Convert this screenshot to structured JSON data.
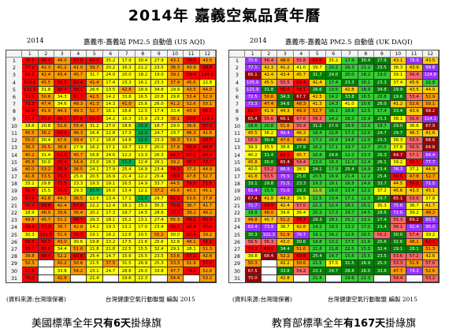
{
  "title": "2014年 嘉義空氣品質年曆",
  "chart_data": [
    {
      "type": "heatmap",
      "year": "2014",
      "title": "嘉義市-嘉義站 PM2.5 自動值 (US AQI)",
      "row_axis": "日",
      "col_axis": "月",
      "columns": [
        "1",
        "2",
        "3",
        "4",
        "5",
        "6",
        "7",
        "8",
        "9",
        "10",
        "11",
        "12"
      ],
      "rows": [
        "1",
        "2",
        "3",
        "4",
        "5",
        "6",
        "7",
        "8",
        "9",
        "10",
        "11",
        "12",
        "13",
        "14",
        "15",
        "16",
        "17",
        "18",
        "19",
        "20",
        "21",
        "22",
        "23",
        "24",
        "25",
        "26",
        "27",
        "28",
        "29",
        "30",
        "31"
      ],
      "values": [
        [
          "70.6",
          "56.4",
          "48.0",
          "55.8",
          "64.0",
          "35.2",
          "17.9",
          "30.4",
          "27.9",
          "43.1",
          "78.9",
          "43.5"
        ],
        [
          "77.1",
          "42.3",
          "41.2",
          "41.0",
          "39.7",
          "20.2",
          "16.3",
          "21.2",
          "23.5",
          "36.3",
          "43.9",
          "99.8"
        ],
        [
          "66.1",
          "42.4",
          "43.4",
          "45.7",
          "31.7",
          "24.0",
          "20.0",
          "18.2",
          "19.0",
          "39.1",
          "56.4",
          "124.8"
        ],
        [
          "105.6",
          "45.5",
          "55.5",
          "60.4",
          "41.4",
          "17.4",
          "23.3",
          "16.1",
          "23.3",
          "37.4",
          "45.6",
          "22.8"
        ],
        [
          "121.9",
          "31.8",
          "60.4",
          "58.1",
          "26.6",
          "13.5",
          "42.8",
          "18.9",
          "34.8",
          "29.9",
          "43.5",
          "44.0"
        ],
        [
          "72.5",
          "50.6",
          "34.3",
          "67.7",
          "42.5",
          "14.2",
          "33.8",
          "16.5",
          "20.8",
          "29.6",
          "53.4",
          "52.9"
        ],
        [
          "73.3",
          "47.4",
          "34.6",
          "48.3",
          "41.3",
          "14.3",
          "41.0",
          "15.6",
          "26.0",
          "41.2",
          "52.6",
          "50.1"
        ],
        [
          "62.0",
          "41.9",
          "44.3",
          "49.3",
          "52.7",
          "16.1",
          "18.8",
          "12.5",
          "17.4",
          "33.4",
          "43.9",
          "68.2"
        ],
        [
          "65.4",
          "55.6",
          "66.1",
          "57.6",
          "56.3",
          "14.2",
          "16.3",
          "15.9",
          "23.3",
          "38.1",
          "55.6",
          "114.1"
        ],
        [
          "18.6",
          "20.8",
          "51.6",
          "55.4",
          "31.2",
          "27.0",
          "18.6",
          "12.0",
          "18.7",
          "29.0",
          "36.6",
          "67.9"
        ],
        [
          "45.5",
          "36.2",
          "99.4",
          "46.3",
          "16.4",
          "22.8",
          "17.3",
          "12.0",
          "24.7",
          "29.7",
          "46.3",
          "41.6"
        ],
        [
          "55.0",
          "30.4",
          "47.6",
          "49.4",
          "17.2",
          "16.8",
          "14.8",
          "12.0",
          "23.3",
          "38.3",
          "53.5",
          "68.6"
        ],
        [
          "39.3",
          "35.5",
          "38.8",
          "27.9",
          "16.2",
          "17.1",
          "19.7",
          "12.7",
          "20.0",
          "37.8",
          "56.9",
          "64.8"
        ],
        [
          "40.2",
          "31.4",
          "61.5",
          "45.7",
          "16.8",
          "24.6",
          "12.2",
          "13.3",
          "26.3",
          "64.7",
          "57.1",
          "84.4"
        ],
        [
          "45.8",
          "30.0",
          "65.4",
          "54.4",
          "23.0",
          "16.3",
          "11.3",
          "12.4",
          "26.1",
          "39.2",
          "60.5",
          "77.7"
        ],
        [
          "40.0",
          "53.2",
          "86.9",
          "38.5",
          "24.1",
          "17.9",
          "25.4",
          "14.9",
          "23.4",
          "76.3",
          "37.2",
          "44.9"
        ],
        [
          "41.8",
          "53.5",
          "75.5",
          "25.0",
          "20.5",
          "16.9",
          "21.4",
          "12.2",
          "25.4",
          "58.6",
          "47.8",
          "52.7"
        ],
        [
          "33.1",
          "29.8",
          "71.5",
          "23.3",
          "19.3",
          "19.1",
          "16.5",
          "14.9",
          "33.7",
          "44.5",
          "59.8",
          "71.5"
        ],
        [
          "91.4",
          "15.5",
          "71.0",
          "29.3",
          "11.0",
          "16.0",
          "13.4",
          "12.1",
          "37.2",
          "45.6",
          "43.3",
          "45.1"
        ],
        [
          "67.4",
          "41.8",
          "44.3",
          "36.5",
          "12.5",
          "13.4",
          "17.1",
          "12.0",
          "29.7",
          "65.1",
          "53.6",
          "37.8"
        ],
        [
          "71.7",
          "59.8",
          "42.4",
          "57.0",
          "22.2",
          "12.4",
          "18.1",
          "15.1",
          "35.3",
          "75.6",
          "36.7",
          "41.7"
        ],
        [
          "18.9",
          "48.0",
          "39.6",
          "36.4",
          "20.2",
          "17.3",
          "19.7",
          "14.5",
          "28.6",
          "72.6",
          "39.2",
          "48.2"
        ],
        [
          "49.8",
          "45.7",
          "51.2",
          "58.7",
          "29.3",
          "18.1",
          "15.2",
          "13.1",
          "27.4",
          "55.3",
          "69.2",
          "80.9"
        ],
        [
          "83.4",
          "73.9",
          "36.7",
          "42.8",
          "14.2",
          "19.3",
          "13.2",
          "17.0",
          "23.4",
          "56.1",
          "92.4",
          "95.0"
        ],
        [
          "30.3",
          "102.3",
          "51.9",
          "70.7",
          "19.1",
          "16.2",
          "12.6",
          "20.5",
          "55.2",
          "30.0",
          "57.4",
          "39.2"
        ],
        [
          "56.5",
          "56.3",
          "43.0",
          "30.6",
          "19.8",
          "13.2",
          "17.5",
          "21.6",
          "25.6",
          "32.6",
          "48.1",
          "62.1"
        ],
        [
          "59.2",
          "60.0",
          "34.4",
          "51.6",
          "21.8",
          "21.8",
          "22.5",
          "15.5",
          "32.4",
          "29.1",
          "28.1",
          "51.3"
        ],
        [
          "39.8",
          "68.4",
          "52.2",
          "60.8",
          "25.4",
          "14.7",
          "15.6",
          "15.5",
          "23.5",
          "53.6",
          "57.2",
          "42.6"
        ],
        [
          "50.3",
          "",
          "42.2",
          "50.6",
          "21.5",
          "37.5",
          "31.5",
          "26.9",
          "25.3",
          "53.3",
          "51.9",
          "57.0"
        ],
        [
          "67.5",
          "",
          "33.8",
          "54.2",
          "23.1",
          "24.7",
          "28.8",
          "26.0",
          "33.8",
          "47.7",
          "74.2",
          "52.6"
        ],
        [
          "70.0",
          "",
          "42.8",
          "",
          "21.4",
          "",
          "19.6",
          "22.3",
          "",
          "54.4",
          "",
          "53.2"
        ]
      ]
    },
    {
      "type": "heatmap",
      "year": "2014",
      "title": "嘉義市-嘉義站 PM2.5 自動值 (UK DAQI)",
      "row_axis": "日",
      "col_axis": "月",
      "columns": [
        "1",
        "2",
        "3",
        "4",
        "5",
        "6",
        "7",
        "8",
        "9",
        "10",
        "11",
        "12"
      ],
      "rows": [
        "1",
        "2",
        "3",
        "4",
        "5",
        "6",
        "7",
        "8",
        "9",
        "10",
        "11",
        "12",
        "13",
        "14",
        "15",
        "16",
        "17",
        "18",
        "19",
        "20",
        "21",
        "22",
        "23",
        "24",
        "25",
        "26",
        "27",
        "28",
        "29",
        "30",
        "31"
      ],
      "values": [
        [
          "70.6",
          "56.4",
          "48.0",
          "55.8",
          "64.0",
          "35.2",
          "17.9",
          "30.4",
          "27.9",
          "43.1",
          "78.9",
          "43.5"
        ],
        [
          "77.1",
          "42.3",
          "41.2",
          "41.0",
          "39.7",
          "20.2",
          "16.3",
          "21.2",
          "23.5",
          "36.3",
          "43.9",
          "99.8"
        ],
        [
          "66.1",
          "42.4",
          "43.4",
          "45.7",
          "31.7",
          "24.0",
          "20.0",
          "18.2",
          "19.0",
          "39.1",
          "56.4",
          "124.8"
        ],
        [
          "105.6",
          "45.5",
          "55.5",
          "60.4",
          "41.4",
          "17.4",
          "23.3",
          "16.1",
          "23.3",
          "37.4",
          "45.6",
          "22.8"
        ],
        [
          "121.9",
          "31.8",
          "60.4",
          "58.1",
          "26.6",
          "13.5",
          "42.8",
          "18.9",
          "34.8",
          "29.9",
          "43.5",
          "44.0"
        ],
        [
          "72.5",
          "50.6",
          "34.3",
          "67.7",
          "42.5",
          "14.2",
          "33.8",
          "16.5",
          "20.8",
          "29.6",
          "53.4",
          "52.9"
        ],
        [
          "73.3",
          "47.4",
          "34.6",
          "48.3",
          "41.3",
          "14.3",
          "41.0",
          "15.6",
          "26.0",
          "41.2",
          "52.6",
          "50.1"
        ],
        [
          "62.0",
          "41.9",
          "44.3",
          "49.3",
          "52.7",
          "16.1",
          "18.8",
          "12.5",
          "17.4",
          "33.4",
          "43.9",
          "68.2"
        ],
        [
          "65.4",
          "55.6",
          "66.1",
          "57.6",
          "56.3",
          "14.2",
          "16.3",
          "15.9",
          "23.3",
          "38.1",
          "55.6",
          "114.1"
        ],
        [
          "18.6",
          "20.8",
          "51.6",
          "55.4",
          "31.2",
          "27.0",
          "18.6",
          "12.0",
          "18.7",
          "29.0",
          "36.6",
          "67.9"
        ],
        [
          "45.5",
          "36.2",
          "99.4",
          "46.3",
          "16.4",
          "22.8",
          "17.3",
          "12.0",
          "24.7",
          "29.7",
          "46.3",
          "41.6"
        ],
        [
          "55.0",
          "30.4",
          "47.6",
          "49.4",
          "17.2",
          "16.8",
          "14.8",
          "12.0",
          "23.3",
          "38.3",
          "53.5",
          "68.6"
        ],
        [
          "39.3",
          "35.5",
          "38.8",
          "27.9",
          "16.2",
          "17.1",
          "19.7",
          "12.7",
          "20.0",
          "37.8",
          "56.9",
          "64.8"
        ],
        [
          "40.2",
          "31.4",
          "61.5",
          "45.7",
          "16.8",
          "24.6",
          "12.2",
          "13.3",
          "26.3",
          "64.7",
          "57.1",
          "84.4"
        ],
        [
          "45.8",
          "30.0",
          "65.4",
          "54.4",
          "23.0",
          "16.3",
          "11.3",
          "12.4",
          "26.1",
          "39.2",
          "60.5",
          "77.7"
        ],
        [
          "40.0",
          "53.2",
          "86.9",
          "38.5",
          "24.1",
          "17.9",
          "25.4",
          "14.9",
          "23.4",
          "76.3",
          "37.2",
          "44.9"
        ],
        [
          "41.8",
          "53.5",
          "75.5",
          "25.0",
          "20.5",
          "16.9",
          "21.4",
          "12.2",
          "25.4",
          "58.6",
          "47.8",
          "52.7"
        ],
        [
          "33.1",
          "29.8",
          "71.5",
          "23.3",
          "19.3",
          "19.1",
          "16.5",
          "14.9",
          "33.7",
          "44.5",
          "59.8",
          "71.5"
        ],
        [
          "91.4",
          "15.5",
          "71.0",
          "29.3",
          "11.0",
          "16.0",
          "13.4",
          "12.1",
          "37.2",
          "45.6",
          "43.3",
          "45.1"
        ],
        [
          "67.4",
          "41.8",
          "44.3",
          "36.5",
          "12.5",
          "13.4",
          "17.1",
          "12.0",
          "29.7",
          "65.1",
          "53.6",
          "37.8"
        ],
        [
          "71.7",
          "59.8",
          "42.4",
          "57.0",
          "22.2",
          "12.4",
          "18.1",
          "15.1",
          "35.3",
          "75.6",
          "36.7",
          "41.7"
        ],
        [
          "18.9",
          "48.0",
          "39.6",
          "36.4",
          "20.2",
          "17.3",
          "19.7",
          "14.5",
          "28.6",
          "72.6",
          "39.2",
          "48.2"
        ],
        [
          "49.8",
          "45.7",
          "51.2",
          "58.7",
          "29.3",
          "18.1",
          "15.2",
          "13.1",
          "27.4",
          "55.3",
          "69.2",
          "80.9"
        ],
        [
          "83.4",
          "73.9",
          "36.7",
          "42.8",
          "14.2",
          "19.3",
          "13.2",
          "17.0",
          "23.4",
          "56.1",
          "92.4",
          "95.0"
        ],
        [
          "30.3",
          "102.3",
          "51.9",
          "70.7",
          "19.1",
          "16.2",
          "12.6",
          "20.5",
          "55.2",
          "30.0",
          "57.4",
          "39.2"
        ],
        [
          "56.5",
          "56.3",
          "43.0",
          "30.6",
          "19.8",
          "13.2",
          "17.5",
          "21.6",
          "25.6",
          "32.6",
          "48.1",
          "62.1"
        ],
        [
          "59.2",
          "60.0",
          "34.4",
          "51.6",
          "21.8",
          "21.8",
          "22.5",
          "15.5",
          "32.4",
          "29.1",
          "28.1",
          "51.3"
        ],
        [
          "39.8",
          "68.4",
          "52.2",
          "60.8",
          "25.4",
          "14.7",
          "15.6",
          "15.5",
          "23.5",
          "53.6",
          "57.2",
          "42.6"
        ],
        [
          "50.3",
          "",
          "42.2",
          "50.6",
          "21.5",
          "37.5",
          "31.5",
          "26.9",
          "25.3",
          "53.3",
          "51.9",
          "57.0"
        ],
        [
          "67.5",
          "",
          "33.8",
          "54.2",
          "23.1",
          "24.7",
          "28.8",
          "26.0",
          "33.8",
          "47.7",
          "74.2",
          "52.6"
        ],
        [
          "70.0",
          "",
          "42.8",
          "",
          "21.4",
          "",
          "19.6",
          "22.3",
          "",
          "54.4",
          "",
          "53.2"
        ]
      ]
    }
  ],
  "panels": {
    "us": {
      "source": "(資料來源:台灣環保署)",
      "credit": "台灣健康空氣行動聯盟 編製 2015",
      "caption_pre": "美國標準全年",
      "caption_bold": "只有6天",
      "caption_post": "掛綠旗"
    },
    "uk": {
      "source": "(資料來源:台灣環保署)",
      "credit": "台灣健康空氣行動聯盟 編製 2015",
      "caption_pre": "教育部標準全年",
      "caption_bold": "有167天",
      "caption_post": "掛綠旗"
    }
  },
  "color_scales": {
    "us": [
      {
        "max": 12.0,
        "color": "#00b050"
      },
      {
        "max": 35.4,
        "color": "#ffff00"
      },
      {
        "max": 55.4,
        "color": "#ff9900"
      },
      {
        "max": 150.4,
        "color": "#ff0000"
      }
    ],
    "uk": [
      {
        "max": 11,
        "color": "#9acd32"
      },
      {
        "max": 23,
        "color": "#33cc33"
      },
      {
        "max": 35,
        "color": "#008000"
      },
      {
        "max": 41,
        "color": "#ffff00"
      },
      {
        "max": 47,
        "color": "#ffcc00"
      },
      {
        "max": 53,
        "color": "#ff9900"
      },
      {
        "max": 58,
        "color": "#ff6666"
      },
      {
        "max": 64,
        "color": "#ff0000"
      },
      {
        "max": 70,
        "color": "#990000"
      },
      {
        "max": 9999,
        "color": "#9933ff"
      }
    ]
  }
}
